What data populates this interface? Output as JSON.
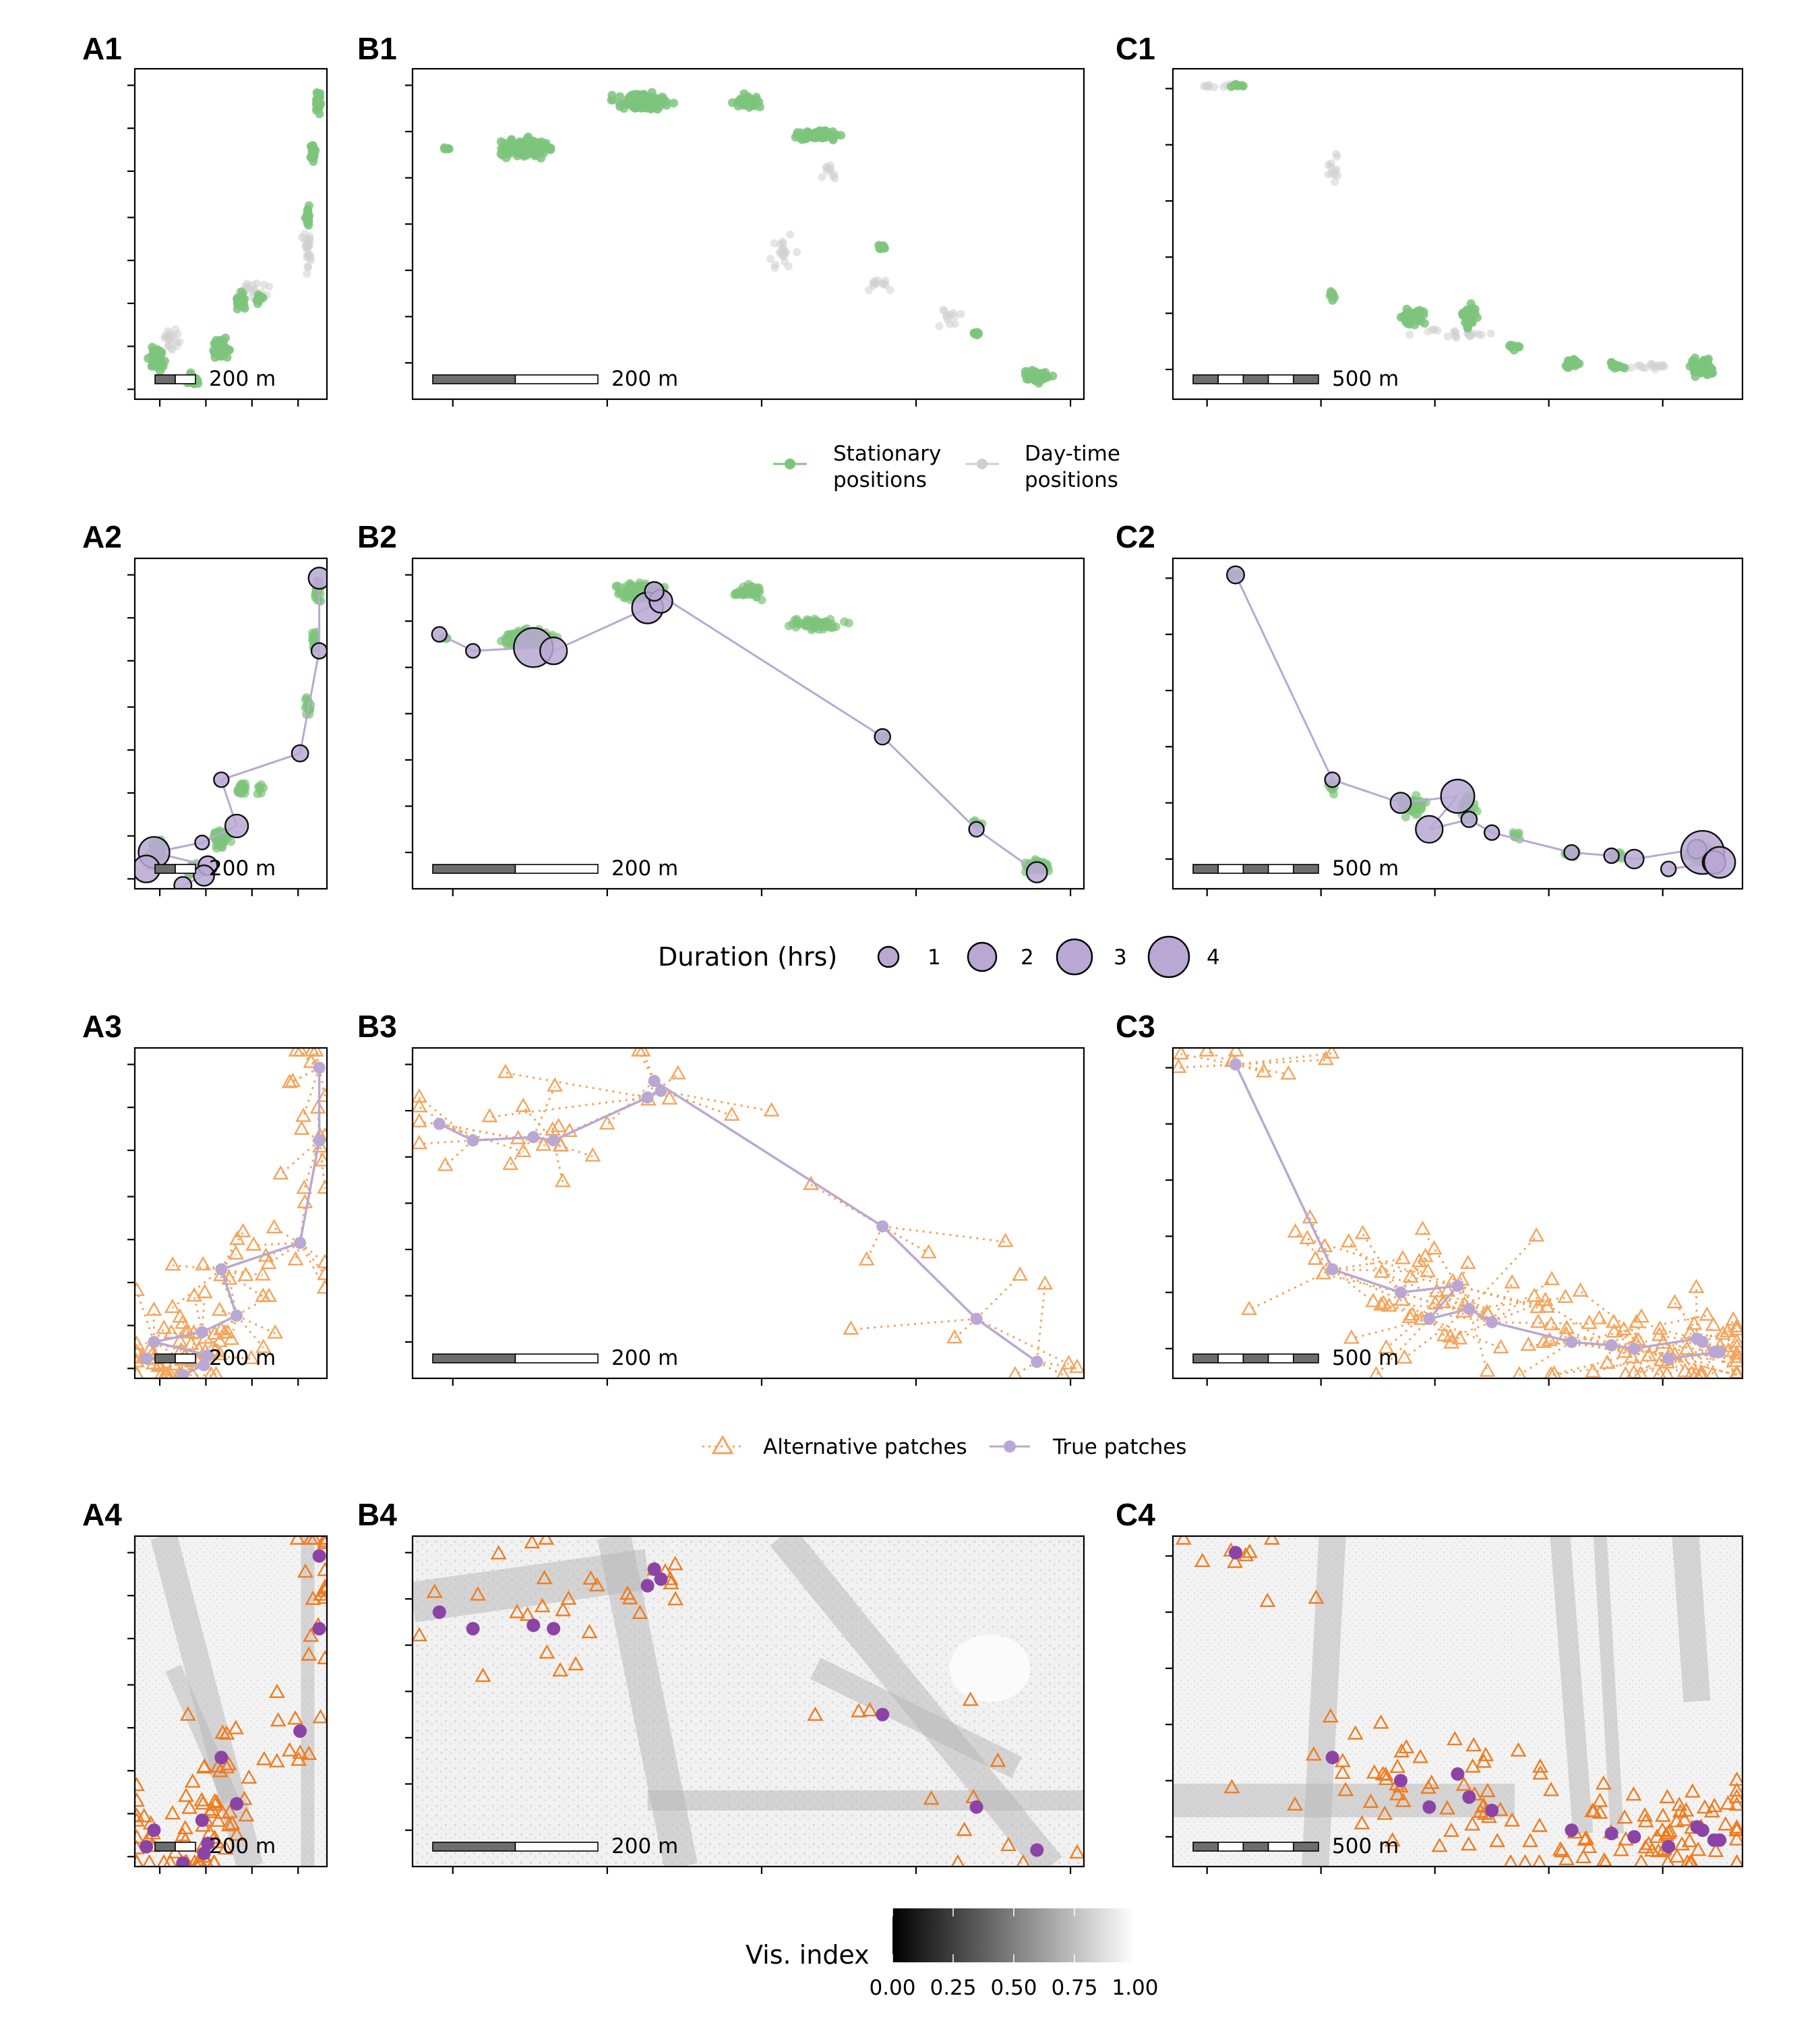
{
  "chart_data": {
    "type": "scatter",
    "title": "",
    "colors": {
      "stationary": "#7DC47B",
      "daytime": "#CFCFCF",
      "true_patch": "#B8A8D3",
      "true_patch_dark": "#8B44A6",
      "alternative": "#F5A45B",
      "alternative_dark": "#F07C1E"
    },
    "columns": [
      {
        "id": "A",
        "scale_label": "200 m"
      },
      {
        "id": "B",
        "scale_label": "200 m"
      },
      {
        "id": "C",
        "scale_label": "500 m"
      }
    ],
    "rows": [
      {
        "row": 1,
        "labels": [
          "A1",
          "B1",
          "C1"
        ],
        "content": "Stationary and day-time positions"
      },
      {
        "row": 2,
        "labels": [
          "A2",
          "B2",
          "C2"
        ],
        "content": "Patches sized by duration over stationary positions"
      },
      {
        "row": 3,
        "labels": [
          "A3",
          "B3",
          "C3"
        ],
        "content": "True patches and alternative patches"
      },
      {
        "row": 4,
        "labels": [
          "A4",
          "B4",
          "C4"
        ],
        "content": "Patches over visibility index raster"
      }
    ],
    "legend_positions": {
      "entries": [
        {
          "key": "stationary",
          "label_line1": "Stationary",
          "label_line2": "positions"
        },
        {
          "key": "daytime",
          "label_line1": "Day-time",
          "label_line2": "positions"
        }
      ]
    },
    "legend_duration": {
      "title": "Duration (hrs)",
      "values": [
        1,
        2,
        3,
        4
      ],
      "labels": [
        "1",
        "2",
        "3",
        "4"
      ]
    },
    "legend_patches": {
      "entries": [
        {
          "key": "alternative",
          "label": "Alternative patches"
        },
        {
          "key": "true",
          "label": "True patches"
        }
      ]
    },
    "legend_visindex": {
      "title": "Vis. index",
      "range": [
        0,
        1
      ],
      "tick_values": [
        0,
        0.25,
        0.5,
        0.75,
        1
      ],
      "tick_labels": [
        "0.00",
        "0.25",
        "0.50",
        "0.75",
        "1.00"
      ]
    },
    "true_patches": {
      "A": {
        "points": [
          [
            0.96,
            0.94
          ],
          [
            0.96,
            0.72
          ],
          [
            0.86,
            0.41
          ],
          [
            0.45,
            0.33
          ],
          [
            0.53,
            0.19
          ],
          [
            0.35,
            0.14
          ],
          [
            0.1,
            0.11
          ],
          [
            0.38,
            0.07
          ],
          [
            0.06,
            0.06
          ],
          [
            0.36,
            0.04
          ],
          [
            0.25,
            0.01
          ]
        ],
        "durations": [
          1.3,
          0.6,
          0.7,
          0.5,
          1.5,
          0.4,
          2.5,
          1.0,
          2.0,
          1.2,
          0.8
        ]
      },
      "B": {
        "points": [
          [
            0.04,
            0.77
          ],
          [
            0.09,
            0.72
          ],
          [
            0.18,
            0.73
          ],
          [
            0.21,
            0.72
          ],
          [
            0.35,
            0.85
          ],
          [
            0.37,
            0.87
          ],
          [
            0.36,
            0.9
          ],
          [
            0.7,
            0.46
          ],
          [
            0.84,
            0.18
          ],
          [
            0.93,
            0.05
          ]
        ],
        "durations": [
          0.5,
          0.4,
          3.5,
          2.0,
          2.5,
          1.5,
          1.0,
          0.6,
          0.5,
          1.2
        ]
      },
      "C": {
        "points": [
          [
            0.11,
            0.95
          ],
          [
            0.28,
            0.33
          ],
          [
            0.4,
            0.26
          ],
          [
            0.5,
            0.28
          ],
          [
            0.45,
            0.18
          ],
          [
            0.52,
            0.21
          ],
          [
            0.56,
            0.17
          ],
          [
            0.7,
            0.11
          ],
          [
            0.77,
            0.1
          ],
          [
            0.81,
            0.09
          ],
          [
            0.92,
            0.12
          ],
          [
            0.93,
            0.11
          ],
          [
            0.95,
            0.08
          ],
          [
            0.96,
            0.08
          ],
          [
            0.87,
            0.06
          ]
        ],
        "durations": [
          0.8,
          0.5,
          1.2,
          2.8,
          2.0,
          0.6,
          0.5,
          0.5,
          0.5,
          1.0,
          1.0,
          4.0,
          1.5,
          2.5,
          0.5
        ]
      }
    }
  }
}
